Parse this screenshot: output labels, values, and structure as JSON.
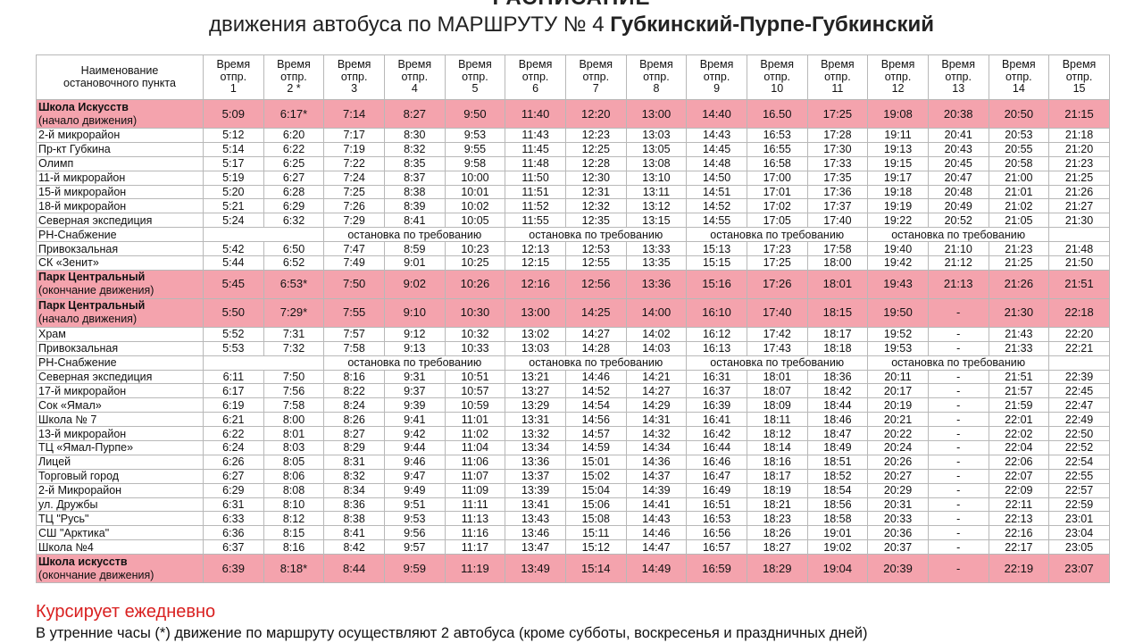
{
  "header": {
    "top": "РАСПИСАНИЕ",
    "main_prefix": "движения автобуса по МАРШРУТУ № 4 ",
    "main_route": "Губкинский-Пурпе-Губкинский"
  },
  "table": {
    "stop_header": "Наименование остановочного пункта",
    "time_label": "Время отпр.",
    "trip_numbers": [
      "1",
      "2 *",
      "3",
      "4",
      "5",
      "6",
      "7",
      "8",
      "9",
      "10",
      "11",
      "12",
      "13",
      "14",
      "15"
    ],
    "rows": [
      {
        "type": "hl",
        "name": "Школа Искусств",
        "sub": "(начало движения)",
        "times": [
          "5:09",
          "6:17*",
          "7:14",
          "8:27",
          "9:50",
          "11:40",
          "12:20",
          "13:00",
          "14:40",
          "16.50",
          "17:25",
          "19:08",
          "20:38",
          "20:50",
          "21:15"
        ]
      },
      {
        "type": "r",
        "name": "2-й микрорайон",
        "times": [
          "5:12",
          "6:20",
          "7:17",
          "8:30",
          "9:53",
          "11:43",
          "12:23",
          "13:03",
          "14:43",
          "16:53",
          "17:28",
          "19:11",
          "20:41",
          "20:53",
          "21:18"
        ]
      },
      {
        "type": "r",
        "name": "Пр-кт Губкина",
        "times": [
          "5:14",
          "6:22",
          "7:19",
          "8:32",
          "9:55",
          "11:45",
          "12:25",
          "13:05",
          "14:45",
          "16:55",
          "17:30",
          "19:13",
          "20:43",
          "20:55",
          "21:20"
        ]
      },
      {
        "type": "r",
        "name": "Олимп",
        "times": [
          "5:17",
          "6:25",
          "7:22",
          "8:35",
          "9:58",
          "11:48",
          "12:28",
          "13:08",
          "14:48",
          "16:58",
          "17:33",
          "19:15",
          "20:45",
          "20:58",
          "21:23"
        ]
      },
      {
        "type": "r",
        "name": "11-й микрорайон",
        "times": [
          "5:19",
          "6:27",
          "7:24",
          "8:37",
          "10:00",
          "11:50",
          "12:30",
          "13:10",
          "14:50",
          "17:00",
          "17:35",
          "19:17",
          "20:47",
          "21:00",
          "21:25"
        ]
      },
      {
        "type": "r",
        "name": "15-й микрорайон",
        "times": [
          "5:20",
          "6:28",
          "7:25",
          "8:38",
          "10:01",
          "11:51",
          "12:31",
          "13:11",
          "14:51",
          "17:01",
          "17:36",
          "19:18",
          "20:48",
          "21:01",
          "21:26"
        ]
      },
      {
        "type": "r",
        "name": "18-й микрорайон",
        "times": [
          "5:21",
          "6:29",
          "7:26",
          "8:39",
          "10:02",
          "11:52",
          "12:32",
          "13:12",
          "14:52",
          "17:02",
          "17:37",
          "19:19",
          "20:49",
          "21:02",
          "21:27"
        ]
      },
      {
        "type": "r",
        "name": "Северная экспедиция",
        "times": [
          "5:24",
          "6:32",
          "7:29",
          "8:41",
          "10:05",
          "11:55",
          "12:35",
          "13:15",
          "14:55",
          "17:05",
          "17:40",
          "19:22",
          "20:52",
          "21:05",
          "21:30"
        ]
      },
      {
        "type": "req",
        "name": "РН-Снабжение",
        "texts": [
          "остановка по требованию",
          "остановка по требованию",
          "остановка по требованию",
          "остановка по требованию"
        ]
      },
      {
        "type": "r",
        "name": "Привокзальная",
        "times": [
          "5:42",
          "6:50",
          "7:47",
          "8:59",
          "10:23",
          "12:13",
          "12:53",
          "13:33",
          "15:13",
          "17:23",
          "17:58",
          "19:40",
          "21:10",
          "21:23",
          "21:48"
        ]
      },
      {
        "type": "r",
        "name": "СК «Зенит»",
        "times": [
          "5:44",
          "6:52",
          "7:49",
          "9:01",
          "10:25",
          "12:15",
          "12:55",
          "13:35",
          "15:15",
          "17:25",
          "18:00",
          "19:42",
          "21:12",
          "21:25",
          "21:50"
        ]
      },
      {
        "type": "hl",
        "name": "Парк Центральный",
        "sub": "(окончание движения)",
        "times": [
          "5:45",
          "6:53*",
          "7:50",
          "9:02",
          "10:26",
          "12:16",
          "12:56",
          "13:36",
          "15:16",
          "17:26",
          "18:01",
          "19:43",
          "21:13",
          "21:26",
          "21:51"
        ]
      },
      {
        "type": "hl",
        "name": "Парк Центральный",
        "sub": "(начало движения)",
        "times": [
          "5:50",
          "7:29*",
          "7:55",
          "9:10",
          "10:30",
          "13:00",
          "14:25",
          "14:00",
          "16:10",
          "17:40",
          "18:15",
          "19:50",
          "-",
          "21:30",
          "22:18"
        ]
      },
      {
        "type": "r",
        "name": "Храм",
        "times": [
          "5:52",
          "7:31",
          "7:57",
          "9:12",
          "10:32",
          "13:02",
          "14:27",
          "14:02",
          "16:12",
          "17:42",
          "18:17",
          "19:52",
          "-",
          "21:43",
          "22:20"
        ]
      },
      {
        "type": "r",
        "name": "Привокзальная",
        "times": [
          "5:53",
          "7:32",
          "7:58",
          "9:13",
          "10:33",
          "13:03",
          "14:28",
          "14:03",
          "16:13",
          "17:43",
          "18:18",
          "19:53",
          "-",
          "21:33",
          "22:21"
        ]
      },
      {
        "type": "req",
        "name": "РН-Снабжение",
        "texts": [
          "остановка по требованию",
          "остановка по требованию",
          "остановка по требованию",
          "остановка по требованию"
        ]
      },
      {
        "type": "r",
        "name": "Северная экспедиция",
        "times": [
          "6:11",
          "7:50",
          "8:16",
          "9:31",
          "10:51",
          "13:21",
          "14:46",
          "14:21",
          "16:31",
          "18:01",
          "18:36",
          "20:11",
          "-",
          "21:51",
          "22:39"
        ]
      },
      {
        "type": "r",
        "name": "17-й микрорайон",
        "times": [
          "6:17",
          "7:56",
          "8:22",
          "9:37",
          "10:57",
          "13:27",
          "14:52",
          "14:27",
          "16:37",
          "18:07",
          "18:42",
          "20:17",
          "-",
          "21:57",
          "22:45"
        ]
      },
      {
        "type": "r",
        "name": "Сок «Ямал»",
        "times": [
          "6:19",
          "7:58",
          "8:24",
          "9:39",
          "10:59",
          "13:29",
          "14:54",
          "14:29",
          "16:39",
          "18:09",
          "18:44",
          "20:19",
          "-",
          "21:59",
          "22:47"
        ]
      },
      {
        "type": "r",
        "name": "Школа № 7",
        "times": [
          "6:21",
          "8:00",
          "8:26",
          "9:41",
          "11:01",
          "13:31",
          "14:56",
          "14:31",
          "16:41",
          "18:11",
          "18:46",
          "20:21",
          "-",
          "22:01",
          "22:49"
        ]
      },
      {
        "type": "r",
        "name": "13-й микрорайон",
        "times": [
          "6:22",
          "8:01",
          "8:27",
          "9:42",
          "11:02",
          "13:32",
          "14:57",
          "14:32",
          "16:42",
          "18:12",
          "18:47",
          "20:22",
          "-",
          "22:02",
          "22:50"
        ]
      },
      {
        "type": "r",
        "name": "ТЦ «Ямал-Пурпе»",
        "times": [
          "6:24",
          "8:03",
          "8:29",
          "9:44",
          "11:04",
          "13:34",
          "14:59",
          "14:34",
          "16:44",
          "18:14",
          "18:49",
          "20:24",
          "-",
          "22:04",
          "22:52"
        ]
      },
      {
        "type": "r",
        "name": "Лицей",
        "times": [
          "6:26",
          "8:05",
          "8:31",
          "9:46",
          "11:06",
          "13:36",
          "15:01",
          "14:36",
          "16:46",
          "18:16",
          "18:51",
          "20:26",
          "-",
          "22:06",
          "22:54"
        ]
      },
      {
        "type": "r",
        "name": "Торговый город",
        "times": [
          "6:27",
          "8:06",
          "8:32",
          "9:47",
          "11:07",
          "13:37",
          "15:02",
          "14:37",
          "16:47",
          "18:17",
          "18:52",
          "20:27",
          "-",
          "22:07",
          "22:55"
        ]
      },
      {
        "type": "r",
        "name": "2-й Микрорайон",
        "times": [
          "6:29",
          "8:08",
          "8:34",
          "9:49",
          "11:09",
          "13:39",
          "15:04",
          "14:39",
          "16:49",
          "18:19",
          "18:54",
          "20:29",
          "-",
          "22:09",
          "22:57"
        ]
      },
      {
        "type": "r",
        "name": "ул. Дружбы",
        "times": [
          "6:31",
          "8:10",
          "8:36",
          "9:51",
          "11:11",
          "13:41",
          "15:06",
          "14:41",
          "16:51",
          "18:21",
          "18:56",
          "20:31",
          "-",
          "22:11",
          "22:59"
        ]
      },
      {
        "type": "r",
        "name": "ТЦ \"Русь\"",
        "times": [
          "6:33",
          "8:12",
          "8:38",
          "9:53",
          "11:13",
          "13:43",
          "15:08",
          "14:43",
          "16:53",
          "18:23",
          "18:58",
          "20:33",
          "-",
          "22:13",
          "23:01"
        ]
      },
      {
        "type": "r",
        "name": "СШ \"Арктика\"",
        "times": [
          "6:36",
          "8:15",
          "8:41",
          "9:56",
          "11:16",
          "13:46",
          "15:11",
          "14:46",
          "16:56",
          "18:26",
          "19:01",
          "20:36",
          "-",
          "22:16",
          "23:04"
        ]
      },
      {
        "type": "r",
        "name": "Школа №4",
        "times": [
          "6:37",
          "8:16",
          "8:42",
          "9:57",
          "11:17",
          "13:47",
          "15:12",
          "14:47",
          "16:57",
          "18:27",
          "19:02",
          "20:37",
          "-",
          "22:17",
          "23:05"
        ]
      },
      {
        "type": "hl",
        "name": "Школа искусств",
        "sub": "(окончание движения)",
        "times": [
          "6:39",
          "8:18*",
          "8:44",
          "9:59",
          "11:19",
          "13:49",
          "15:14",
          "14:49",
          "16:59",
          "18:29",
          "19:04",
          "20:39",
          "-",
          "22:19",
          "23:07"
        ]
      }
    ]
  },
  "footer": {
    "daily": "Курсирует ежедневно",
    "note": "В утренние часы (*) движение по маршруту осуществляют 2 автобуса (кроме субботы, воскресенья и праздничных дней)"
  },
  "colors": {
    "highlight": "#f4a3ad",
    "daily_text": "#d92020"
  }
}
